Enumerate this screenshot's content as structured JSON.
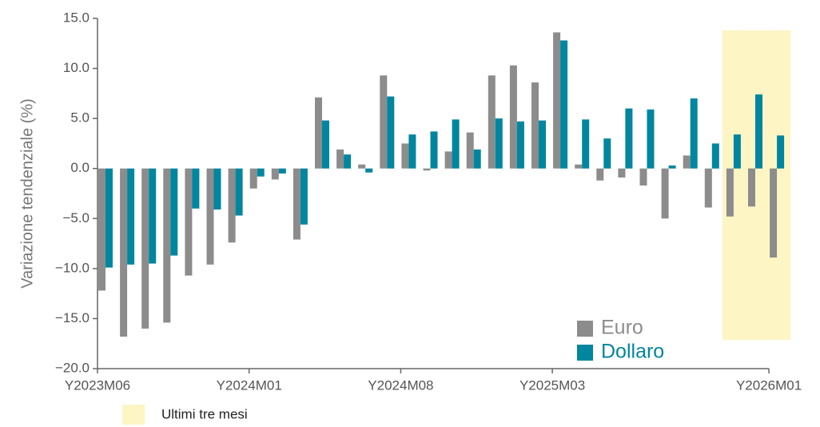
{
  "chart_data": {
    "type": "bar",
    "y_label": "Variazione tendenziale (%)",
    "categories": [
      "Y2023M06",
      null,
      null,
      null,
      null,
      null,
      null,
      "Y2024M01",
      null,
      null,
      null,
      null,
      null,
      null,
      "Y2024M08",
      null,
      null,
      null,
      null,
      null,
      null,
      "Y2025M03",
      null,
      null,
      null,
      null,
      null,
      null,
      null,
      null,
      null,
      "Y2026M01"
    ],
    "series": [
      {
        "name": "Euro",
        "color": "#8c8c8c",
        "values": [
          -12.2,
          -16.8,
          -16.0,
          -15.4,
          -10.7,
          -9.6,
          -7.4,
          -2.0,
          -1.1,
          -7.1,
          7.1,
          1.9,
          0.4,
          9.3,
          2.5,
          -0.2,
          1.7,
          3.6,
          9.3,
          10.3,
          8.6,
          13.6,
          0.4,
          -1.2,
          -0.9,
          -1.7,
          -5.0,
          1.3,
          -3.9,
          -4.8,
          -3.8,
          -8.9
        ]
      },
      {
        "name": "Dollaro",
        "color": "#00869f",
        "values": [
          -9.9,
          -9.6,
          -9.5,
          -8.7,
          -4.0,
          -4.1,
          -4.7,
          -0.8,
          -0.5,
          -5.6,
          4.8,
          1.4,
          -0.4,
          7.2,
          3.4,
          3.7,
          4.9,
          1.9,
          5.0,
          4.7,
          4.8,
          12.8,
          4.9,
          3.0,
          6.0,
          5.9,
          0.3,
          7.0,
          2.5,
          3.4,
          7.4,
          3.3
        ]
      }
    ],
    "ylim": [
      -20,
      15
    ],
    "yticks": [
      {
        "value": 15,
        "label": "15.0"
      },
      {
        "value": 10,
        "label": "10.0"
      },
      {
        "value": 5,
        "label": "5.0"
      },
      {
        "value": 0,
        "label": "0.0"
      },
      {
        "value": -5,
        "label": "−5.0"
      },
      {
        "value": -10,
        "label": "−10.0"
      },
      {
        "value": -15,
        "label": "−15.0"
      },
      {
        "value": -20,
        "label": "−20.0"
      }
    ],
    "highlight": {
      "label": "Ultimi tre mesi",
      "color": "#fdf5c4",
      "count": 3
    }
  }
}
